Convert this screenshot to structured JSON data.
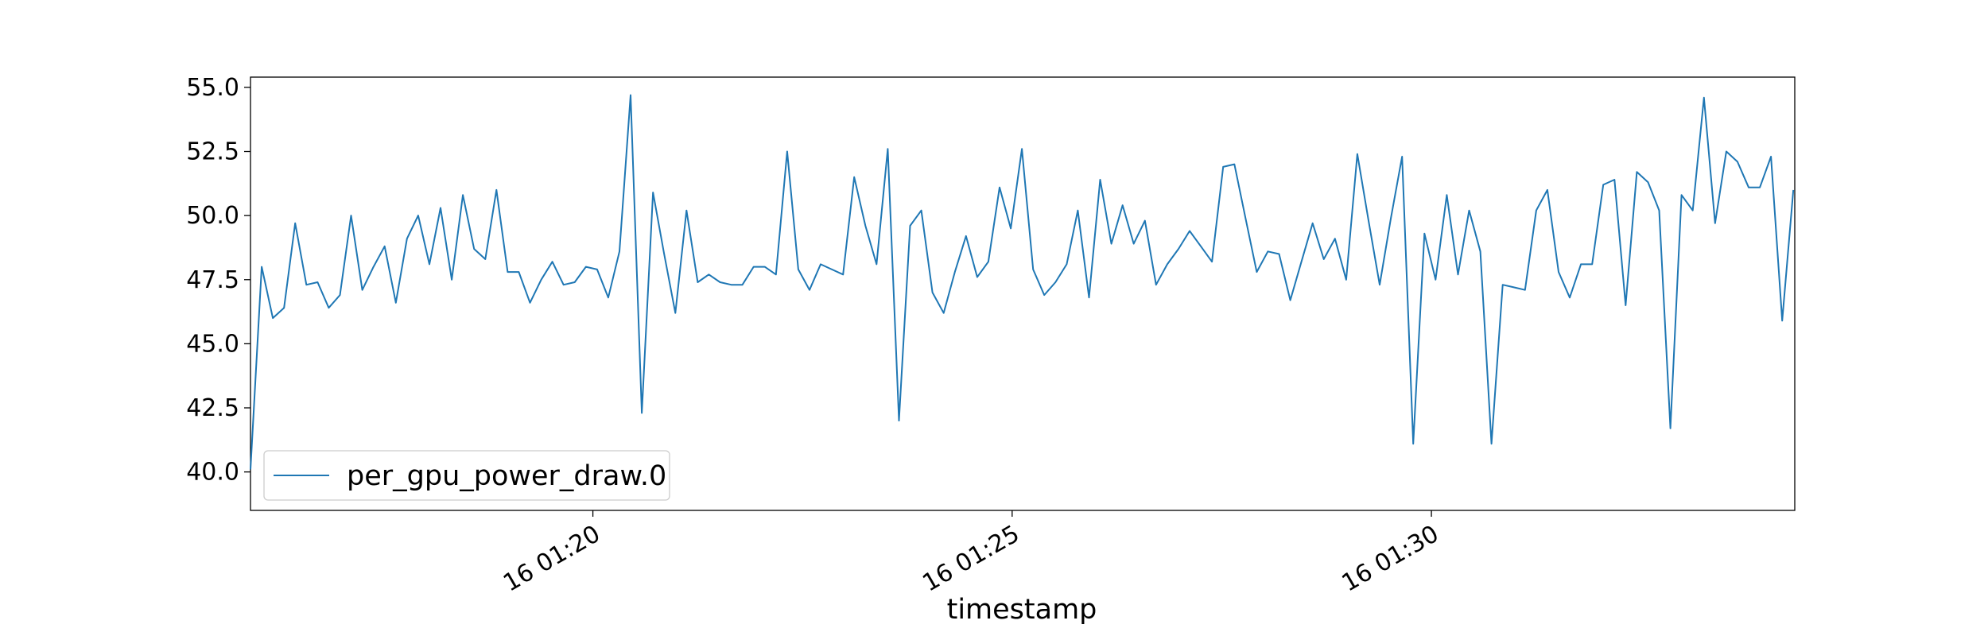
{
  "chart_data": {
    "type": "line",
    "xlabel": "timestamp",
    "ylabel": "",
    "title": "",
    "x_start": "16 01:15:55",
    "x_end": "16 01:34:20",
    "x_step_seconds": 8,
    "ylim": [
      38.5,
      55.4
    ],
    "yticks": [
      "40.0",
      "42.5",
      "45.0",
      "47.5",
      "50.0",
      "52.5",
      "55.0"
    ],
    "xticks": [
      "16 01:20",
      "16 01:25",
      "16 01:30"
    ],
    "grid": false,
    "legend": "lower-left",
    "series": [
      {
        "name": "per_gpu_power_draw.0",
        "color": "#1f77b4",
        "values": [
          40.1,
          48.0,
          46.0,
          46.4,
          49.7,
          47.3,
          47.4,
          46.4,
          46.9,
          50.0,
          47.1,
          48.0,
          48.8,
          46.6,
          49.1,
          50.0,
          48.1,
          50.3,
          47.5,
          50.8,
          48.7,
          48.3,
          51.0,
          47.8,
          47.8,
          46.6,
          47.5,
          48.2,
          47.3,
          47.4,
          48.0,
          47.9,
          46.8,
          48.6,
          54.7,
          42.3,
          50.9,
          48.5,
          46.2,
          50.2,
          47.4,
          47.7,
          47.4,
          47.3,
          47.3,
          48.0,
          48.0,
          47.7,
          52.5,
          47.9,
          47.1,
          48.1,
          47.9,
          47.7,
          51.5,
          49.6,
          48.1,
          52.6,
          42.0,
          49.6,
          50.2,
          47.0,
          46.2,
          47.8,
          49.2,
          47.6,
          48.2,
          51.1,
          49.5,
          52.6,
          47.9,
          46.9,
          47.4,
          48.1,
          50.2,
          46.8,
          51.4,
          48.9,
          50.4,
          48.9,
          49.8,
          47.3,
          48.1,
          48.7,
          49.4,
          48.8,
          48.2,
          51.9,
          52.0,
          49.9,
          47.8,
          48.6,
          48.5,
          46.7,
          48.2,
          49.7,
          48.3,
          49.1,
          47.5,
          52.4,
          49.8,
          47.3,
          49.9,
          52.3,
          41.1,
          49.3,
          47.5,
          50.8,
          47.7,
          50.2,
          48.6,
          41.1,
          47.3,
          47.2,
          47.1,
          50.2,
          51.0,
          47.8,
          46.8,
          48.1,
          48.1,
          51.2,
          51.4,
          46.5,
          51.7,
          51.3,
          50.2,
          41.7,
          50.8,
          50.2,
          54.6,
          49.7,
          52.5,
          52.1,
          51.1,
          51.1,
          52.3,
          45.9,
          51.0
        ]
      }
    ]
  }
}
